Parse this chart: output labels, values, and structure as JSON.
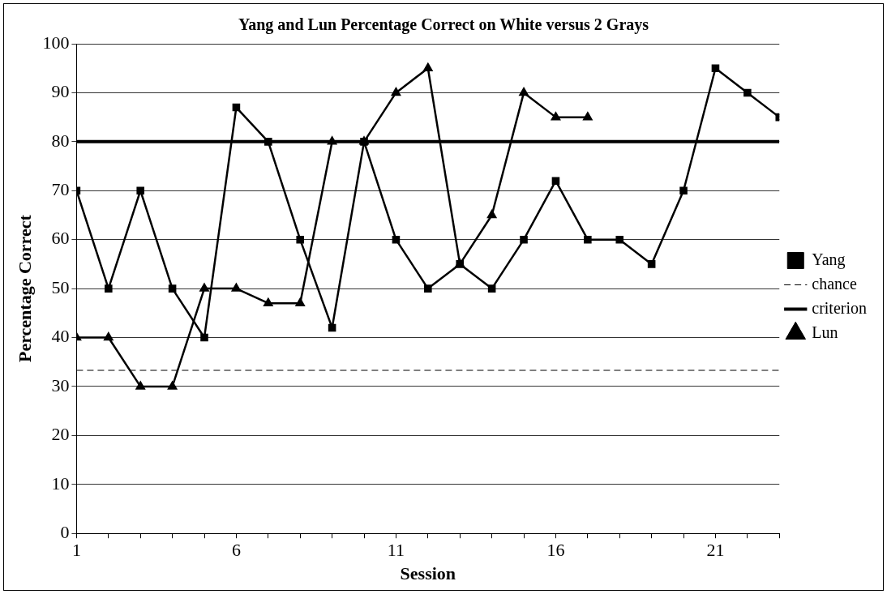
{
  "chart_data": {
    "type": "line",
    "title": "Yang and Lun Percentage Correct on White versus 2 Grays",
    "xlabel": "Session",
    "ylabel": "Percentage Correct",
    "xlim": [
      1,
      23
    ],
    "xticks": [
      1,
      {
        "value": 2,
        "label": null
      },
      {
        "value": 3,
        "label": null
      },
      {
        "value": 4,
        "label": null
      },
      {
        "value": 5,
        "label": null
      },
      6,
      {
        "value": 7,
        "label": null
      },
      {
        "value": 8,
        "label": null
      },
      {
        "value": 9,
        "label": null
      },
      {
        "value": 10,
        "label": null
      },
      11,
      {
        "value": 12,
        "label": null
      },
      {
        "value": 13,
        "label": null
      },
      {
        "value": 14,
        "label": null
      },
      {
        "value": 15,
        "label": null
      },
      16,
      {
        "value": 17,
        "label": null
      },
      {
        "value": 18,
        "label": null
      },
      {
        "value": 19,
        "label": null
      },
      {
        "value": 20,
        "label": null
      },
      21,
      {
        "value": 22,
        "label": null
      },
      {
        "value": 23,
        "label": null
      }
    ],
    "ylim": [
      0,
      100
    ],
    "yticks": [
      0,
      10,
      20,
      30,
      40,
      50,
      60,
      70,
      80,
      90,
      100
    ],
    "grid": "y",
    "legend": "right",
    "series": [
      {
        "name": "Yang",
        "color": "#000000",
        "marker": "square",
        "line_style": "solid",
        "x": [
          1,
          2,
          3,
          4,
          5,
          6,
          7,
          8,
          9,
          10,
          11,
          12,
          13,
          14,
          15,
          16,
          17,
          18,
          19,
          20,
          21,
          22,
          23
        ],
        "values": [
          70,
          50,
          70,
          50,
          40,
          87,
          80,
          60,
          42,
          80,
          60,
          50,
          55,
          50,
          60,
          72,
          60,
          60,
          55,
          70,
          95,
          90,
          85
        ]
      },
      {
        "name": "chance",
        "color": "#000000",
        "marker": "none",
        "line_style": "dashed",
        "x": [
          1,
          2,
          3,
          4,
          5,
          6,
          7,
          8,
          9,
          10,
          11,
          12,
          13,
          14,
          15,
          16,
          17,
          18,
          19,
          20,
          21,
          22,
          23
        ],
        "values": [
          33.3,
          33.3,
          33.3,
          33.3,
          33.3,
          33.3,
          33.3,
          33.3,
          33.3,
          33.3,
          33.3,
          33.3,
          33.3,
          33.3,
          33.3,
          33.3,
          33.3,
          33.3,
          33.3,
          33.3,
          33.3,
          33.3,
          33.3
        ]
      },
      {
        "name": "criterion",
        "color": "#000000",
        "marker": "none",
        "line_style": "solid",
        "x": [
          1,
          2,
          3,
          4,
          5,
          6,
          7,
          8,
          9,
          10,
          11,
          12,
          13,
          14,
          15,
          16,
          17,
          18,
          19,
          20,
          21,
          22,
          23
        ],
        "values": [
          80,
          80,
          80,
          80,
          80,
          80,
          80,
          80,
          80,
          80,
          80,
          80,
          80,
          80,
          80,
          80,
          80,
          80,
          80,
          80,
          80,
          80,
          80
        ]
      },
      {
        "name": "Lun",
        "color": "#000000",
        "marker": "triangle",
        "line_style": "solid",
        "x": [
          1,
          2,
          3,
          4,
          5,
          6,
          7,
          8,
          9,
          10,
          11,
          12,
          13,
          14,
          15,
          16,
          17
        ],
        "values": [
          40,
          40,
          30,
          30,
          50,
          50,
          47,
          47,
          80,
          80,
          90,
          95,
          55,
          65,
          90,
          85,
          85
        ]
      }
    ]
  }
}
